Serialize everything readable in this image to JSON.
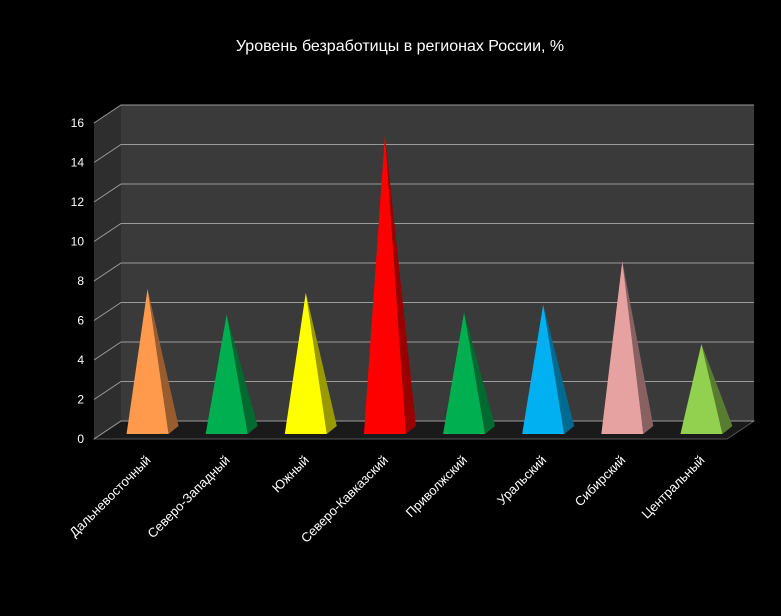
{
  "chart_data": {
    "type": "bar",
    "style": "3d-pyramid",
    "title": "Уровень безработицы в регионах России, %",
    "categories": [
      "Дальневосточный",
      "Северо-Западный",
      "Южный",
      "Северо-Кавказский",
      "Приволжский",
      "Уральский",
      "Сибирский",
      "Центральный"
    ],
    "values": [
      7.0,
      5.7,
      6.8,
      14.8,
      5.8,
      6.2,
      8.4,
      4.2
    ],
    "colors": [
      "#FF9A4D",
      "#00B050",
      "#FFFF00",
      "#FF0000",
      "#00B050",
      "#00B0F0",
      "#E6A1A1",
      "#92D050"
    ],
    "ylim": [
      0,
      16
    ],
    "yticks": [
      0,
      2,
      4,
      6,
      8,
      10,
      12,
      14,
      16
    ],
    "grid": true,
    "legend": "none",
    "background": "#000000",
    "wall_color": "#3A3A3A",
    "floor_color": "#1A1A1A",
    "text_color": "#FFFFFF"
  }
}
